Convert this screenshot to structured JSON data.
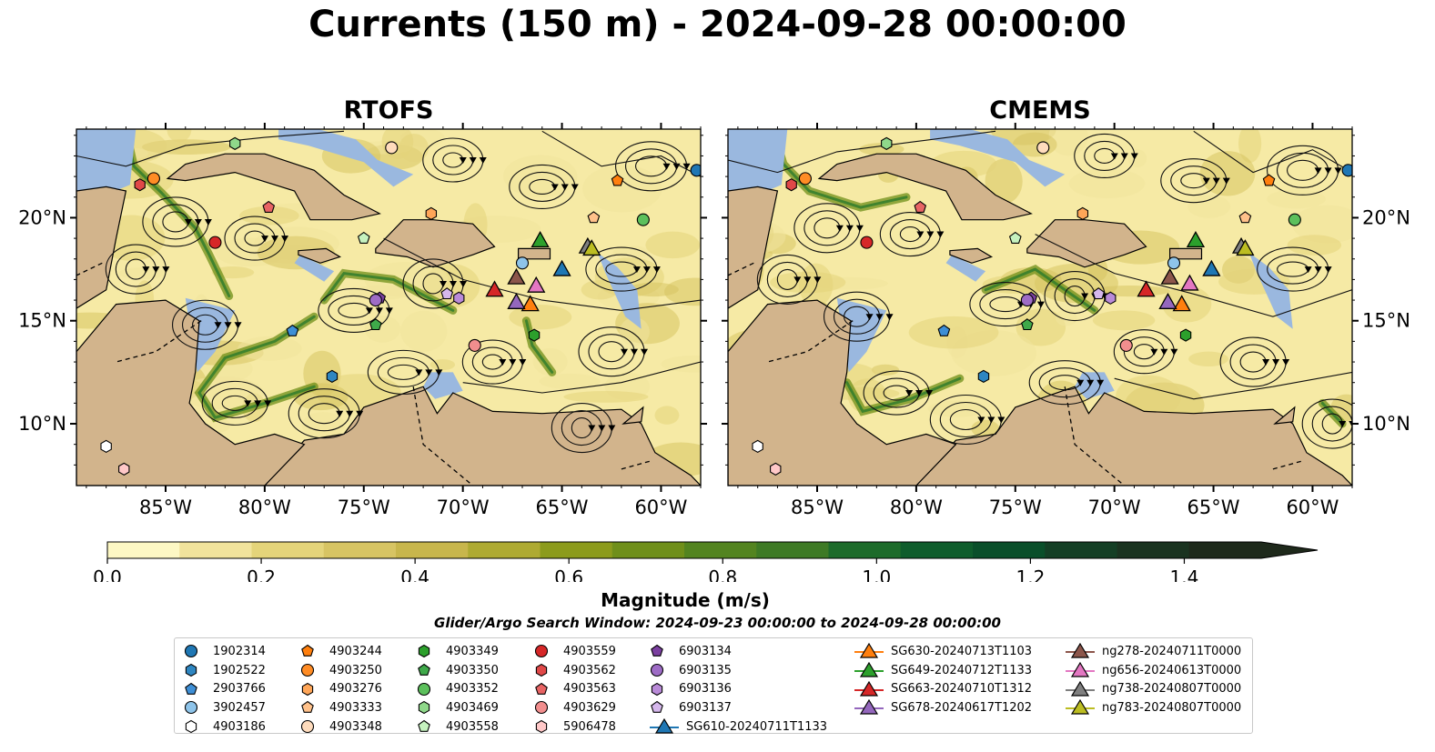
{
  "chart_data": {
    "type": "heatmap",
    "title": "Currents (150 m) - 2024-09-28 00:00:00",
    "panels": [
      {
        "title": "RTOFS"
      },
      {
        "title": "CMEMS"
      }
    ],
    "x_ticks": [
      {
        "value": -85,
        "label": "85°W"
      },
      {
        "value": -80,
        "label": "80°W"
      },
      {
        "value": -75,
        "label": "75°W"
      },
      {
        "value": -70,
        "label": "70°W"
      },
      {
        "value": -65,
        "label": "65°W"
      },
      {
        "value": -60,
        "label": "60°W"
      }
    ],
    "y_ticks": [
      {
        "value": 10,
        "label": "10°N"
      },
      {
        "value": 15,
        "label": "15°N"
      },
      {
        "value": 20,
        "label": "20°N"
      }
    ],
    "xlim": [
      -89.5,
      -58.0
    ],
    "ylim": [
      7.0,
      24.3
    ],
    "colorbar": {
      "label": "Magnitude (m/s)",
      "min": 0.0,
      "max": 1.5,
      "ticks": [
        "0.0",
        "0.2",
        "0.4",
        "0.6",
        "0.8",
        "1.0",
        "1.2",
        "1.4"
      ],
      "extend": "max",
      "colors": [
        "#fdf8c4",
        "#f1e39c",
        "#e4d47a",
        "#d7c463",
        "#c8b64c",
        "#aeaa32",
        "#8c9b1c",
        "#6f8f1a",
        "#538420",
        "#3e7a25",
        "#1d6b2a",
        "#0f5d2c",
        "#0a4f2a",
        "#143f25",
        "#1a3320",
        "#1e291b"
      ]
    },
    "search_window": "Glider/Argo Search Window: 2024-09-23 00:00:00 to 2024-09-28 00:00:00",
    "argo_floats": [
      {
        "id": "1902314",
        "marker": "circle",
        "color": "#1f77b4",
        "rtofs": [
          -58.2,
          22.3
        ],
        "cmems": [
          -58.2,
          22.3
        ]
      },
      {
        "id": "1902522",
        "marker": "hexagon",
        "color": "#2e86c1",
        "rtofs": [
          -76.6,
          12.3
        ],
        "cmems": [
          -76.6,
          12.3
        ]
      },
      {
        "id": "2903766",
        "marker": "pentagon",
        "color": "#3e8fd6",
        "rtofs": [
          -78.6,
          14.5
        ],
        "cmems": [
          -78.6,
          14.5
        ]
      },
      {
        "id": "3902457",
        "marker": "circle",
        "color": "#8ec4ea",
        "rtofs": [
          -67.0,
          17.8
        ],
        "cmems": [
          -67.0,
          17.8
        ]
      },
      {
        "id": "4903186",
        "marker": "hexagon",
        "color": "#ffffff",
        "rtofs": [
          -88.0,
          8.9
        ],
        "cmems": [
          -88.0,
          8.9
        ]
      },
      {
        "id": "4903244",
        "marker": "pentagon",
        "color": "#ff7f0e",
        "rtofs": [
          -62.2,
          21.8
        ],
        "cmems": [
          -62.2,
          21.8
        ]
      },
      {
        "id": "4903250",
        "marker": "circle",
        "color": "#ff8c25",
        "rtofs": [
          -85.6,
          21.9
        ],
        "cmems": [
          -85.6,
          21.9
        ]
      },
      {
        "id": "4903276",
        "marker": "hexagon",
        "color": "#ffa658",
        "rtofs": [
          -71.6,
          20.2
        ],
        "cmems": [
          -71.6,
          20.2
        ]
      },
      {
        "id": "4903333",
        "marker": "pentagon",
        "color": "#ffc18a",
        "rtofs": [
          -63.4,
          20.0
        ],
        "cmems": [
          -63.4,
          20.0
        ]
      },
      {
        "id": "4903348",
        "marker": "circle",
        "color": "#ffdcbd",
        "rtofs": [
          -73.6,
          23.4
        ],
        "cmems": [
          -73.6,
          23.4
        ]
      },
      {
        "id": "4903349",
        "marker": "hexagon",
        "color": "#2ca02c",
        "rtofs": [
          -66.4,
          14.3
        ],
        "cmems": [
          -66.4,
          14.3
        ]
      },
      {
        "id": "4903350",
        "marker": "pentagon",
        "color": "#3fa94a",
        "rtofs": [
          -74.4,
          14.8
        ],
        "cmems": [
          -74.4,
          14.8
        ]
      },
      {
        "id": "4903352",
        "marker": "circle",
        "color": "#5cc05c",
        "rtofs": [
          -60.9,
          19.9
        ],
        "cmems": [
          -60.9,
          19.9
        ]
      },
      {
        "id": "4903469",
        "marker": "hexagon",
        "color": "#8fd88a",
        "rtofs": [
          -81.5,
          23.6
        ],
        "cmems": [
          -81.5,
          23.6
        ]
      },
      {
        "id": "4903558",
        "marker": "pentagon",
        "color": "#c6f2bf",
        "rtofs": [
          -75.0,
          19.0
        ],
        "cmems": [
          -75.0,
          19.0
        ]
      },
      {
        "id": "4903559",
        "marker": "circle",
        "color": "#d62728",
        "rtofs": [
          -82.5,
          18.8
        ],
        "cmems": [
          -82.5,
          18.8
        ]
      },
      {
        "id": "4903562",
        "marker": "hexagon",
        "color": "#e04848",
        "rtofs": [
          -86.3,
          21.6
        ],
        "cmems": [
          -86.3,
          21.6
        ]
      },
      {
        "id": "4903563",
        "marker": "pentagon",
        "color": "#e86464",
        "rtofs": [
          -79.8,
          20.5
        ],
        "cmems": [
          -79.8,
          20.5
        ]
      },
      {
        "id": "4903629",
        "marker": "circle",
        "color": "#f28e8e",
        "rtofs": [
          -69.4,
          13.8
        ],
        "cmems": [
          -69.4,
          13.8
        ]
      },
      {
        "id": "5906478",
        "marker": "hexagon",
        "color": "#ffc8c8",
        "rtofs": [
          -87.1,
          7.8
        ],
        "cmems": [
          -87.1,
          7.8
        ]
      },
      {
        "id": "6903134",
        "marker": "pentagon",
        "color": "#7b3fa0",
        "rtofs": [
          -74.2,
          16.1
        ],
        "cmems": [
          -74.2,
          16.1
        ]
      },
      {
        "id": "6903135",
        "marker": "circle",
        "color": "#9e6cc6",
        "rtofs": [
          -74.4,
          16.0
        ],
        "cmems": [
          -74.4,
          16.0
        ]
      },
      {
        "id": "6903136",
        "marker": "hexagon",
        "color": "#b98ad8",
        "rtofs": [
          -70.2,
          16.1
        ],
        "cmems": [
          -70.2,
          16.1
        ]
      },
      {
        "id": "6903137",
        "marker": "pentagon",
        "color": "#d5b7ec",
        "rtofs": [
          -70.8,
          16.3
        ],
        "cmems": [
          -70.8,
          16.3
        ]
      }
    ],
    "gliders": [
      {
        "id": "SG610-20240711T1133",
        "color": "#1f77b4",
        "rtofs": [
          -65.0,
          17.5
        ],
        "cmems": [
          -65.1,
          17.5
        ]
      },
      {
        "id": "SG630-20240713T1103",
        "color": "#ff7f0e",
        "rtofs": [
          -66.6,
          15.8
        ],
        "cmems": [
          -66.6,
          15.8
        ]
      },
      {
        "id": "SG649-20240712T1133",
        "color": "#2ca02c",
        "rtofs": [
          -66.1,
          18.9
        ],
        "cmems": [
          -65.9,
          18.9
        ]
      },
      {
        "id": "SG663-20240710T1312",
        "color": "#d62728",
        "rtofs": [
          -68.4,
          16.5
        ],
        "cmems": [
          -68.4,
          16.5
        ]
      },
      {
        "id": "SG678-20240617T1202",
        "color": "#9467bd",
        "rtofs": [
          -67.3,
          15.9
        ],
        "cmems": [
          -67.3,
          15.9
        ]
      },
      {
        "id": "ng278-20240711T0000",
        "color": "#8c564b",
        "rtofs": [
          -67.3,
          17.1
        ],
        "cmems": [
          -67.2,
          17.1
        ]
      },
      {
        "id": "ng656-20240613T0000",
        "color": "#e377c2",
        "rtofs": [
          -66.3,
          16.7
        ],
        "cmems": [
          -66.2,
          16.8
        ]
      },
      {
        "id": "ng738-20240807T0000",
        "color": "#7f7f7f",
        "rtofs": [
          -63.7,
          18.6
        ],
        "cmems": [
          -63.6,
          18.6
        ]
      },
      {
        "id": "ng783-20240807T0000",
        "color": "#bcbd22",
        "rtofs": [
          -63.5,
          18.5
        ],
        "cmems": [
          -63.4,
          18.5
        ]
      }
    ]
  },
  "legend": {
    "columns": [
      [
        "1902314",
        "1902522",
        "2903766",
        "3902457",
        "4903186"
      ],
      [
        "4903244",
        "4903250",
        "4903276",
        "4903333",
        "4903348"
      ],
      [
        "4903349",
        "4903350",
        "4903352",
        "4903469",
        "4903558"
      ],
      [
        "4903559",
        "4903562",
        "4903563",
        "4903629",
        "5906478"
      ],
      [
        "6903134",
        "6903135",
        "6903136",
        "6903137",
        "SG610-20240711T1133"
      ],
      [
        "SG630-20240713T1103",
        "SG649-20240712T1133",
        "SG663-20240710T1312",
        "SG678-20240617T1202"
      ],
      [
        "ng278-20240711T0000",
        "ng656-20240613T0000",
        "ng738-20240807T0000",
        "ng783-20240807T0000"
      ]
    ]
  }
}
